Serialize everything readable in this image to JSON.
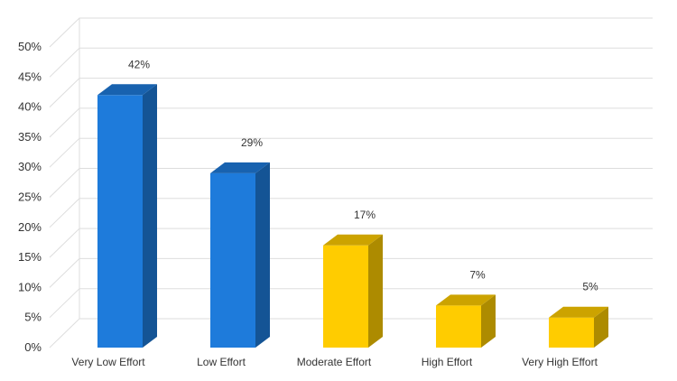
{
  "chart_data": {
    "type": "bar",
    "style": "3d-column",
    "categories": [
      "Very Low Effort",
      "Low Effort",
      "Moderate Effort",
      "High Effort",
      "Very High Effort"
    ],
    "values": [
      42,
      29,
      17,
      7,
      5
    ],
    "data_labels": [
      "42%",
      "29%",
      "17%",
      "7%",
      "5%"
    ],
    "bar_colors": [
      "#1e7bdb",
      "#1e7bdb",
      "#ffcc00",
      "#ffcc00",
      "#ffcc00"
    ],
    "title": "",
    "xlabel": "",
    "ylabel": "",
    "ylim": [
      0,
      50
    ],
    "yticks": [
      0,
      5,
      10,
      15,
      20,
      25,
      30,
      35,
      40,
      45,
      50
    ],
    "ytick_labels": [
      "0%",
      "5%",
      "10%",
      "15%",
      "20%",
      "25%",
      "30%",
      "35%",
      "40%",
      "45%",
      "50%"
    ],
    "grid": true,
    "legend": "none"
  }
}
